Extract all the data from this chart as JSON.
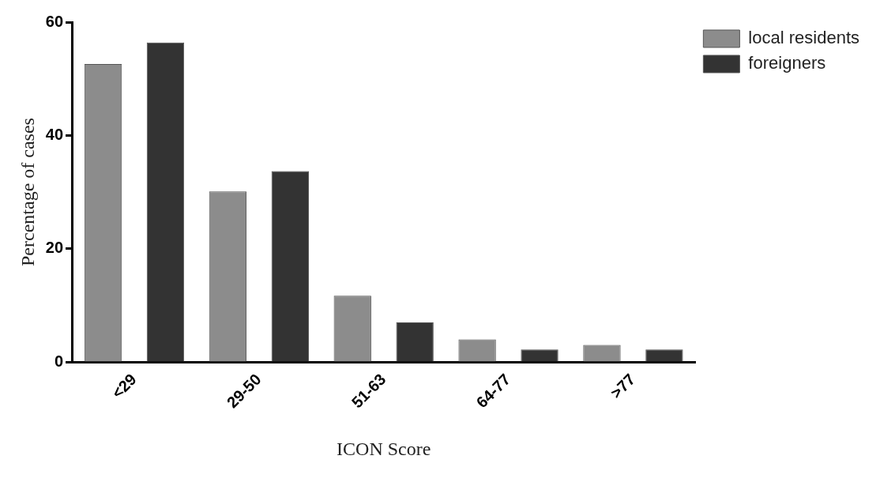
{
  "chart_data": {
    "type": "bar",
    "xlabel": "ICON Score",
    "ylabel": "Percentage of cases",
    "categories": [
      "<29",
      "29-50",
      "51-63",
      "64-77",
      ">77"
    ],
    "series": [
      {
        "name": "local residents",
        "color": "#8c8c8c",
        "values": [
          52.6,
          30.1,
          11.7,
          4.0,
          3.0
        ]
      },
      {
        "name": "foreigners",
        "color": "#333333",
        "values": [
          56.4,
          33.7,
          7.0,
          2.2,
          2.2
        ]
      }
    ],
    "ylim": [
      0,
      60
    ],
    "yticks": [
      0,
      20,
      40,
      60
    ],
    "grid": false,
    "legend": "top right"
  }
}
